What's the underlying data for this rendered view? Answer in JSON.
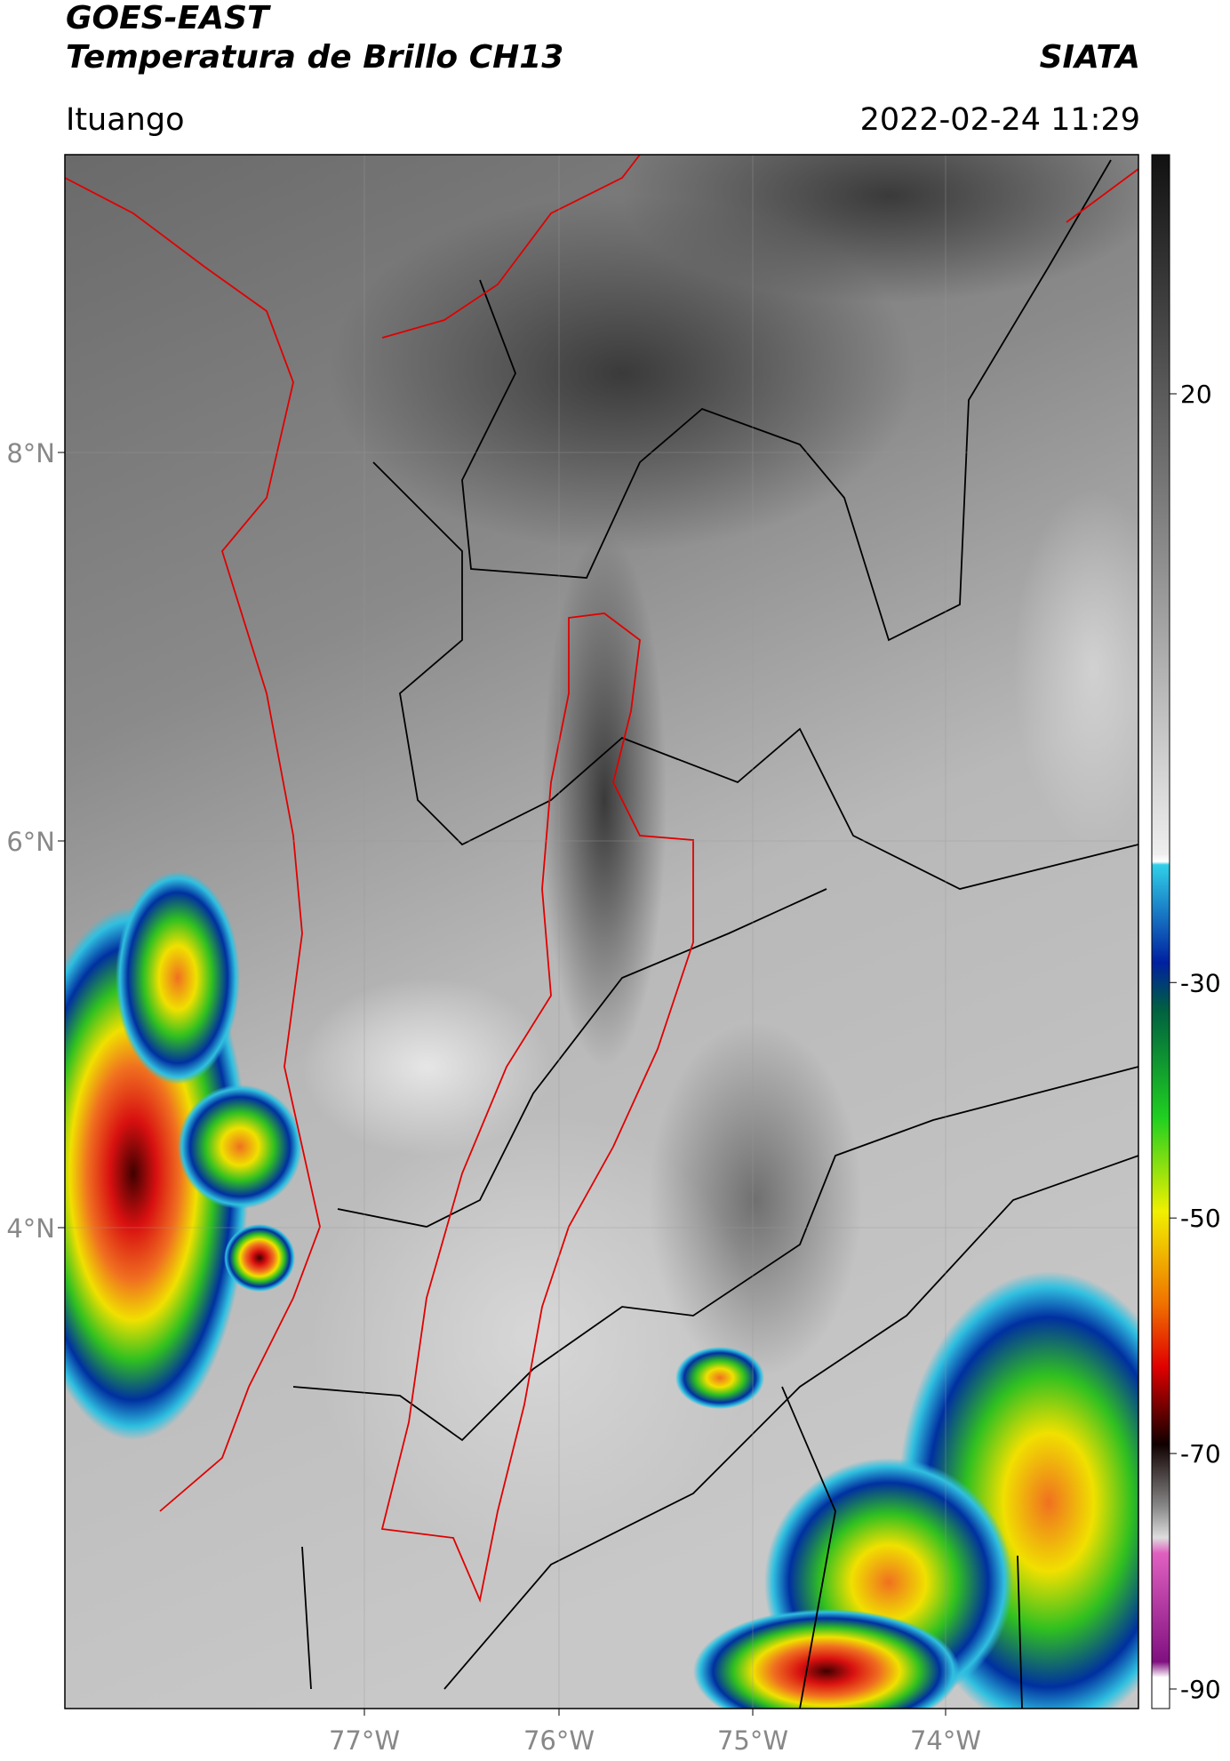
{
  "header": {
    "title": "GOES-EAST",
    "subtitle": "Temperatura de Brillo CH13",
    "source": "SIATA",
    "location": "Ituango",
    "timestamp": "2022-02-24 11:29"
  },
  "map": {
    "lat_labels": [
      "8°N",
      "6°N",
      "4°N"
    ],
    "lon_labels": [
      "77°W",
      "76°W",
      "75°W",
      "74°W"
    ]
  },
  "colorbar": {
    "ticks": [
      20,
      -30,
      -50,
      -70,
      -90
    ]
  }
}
